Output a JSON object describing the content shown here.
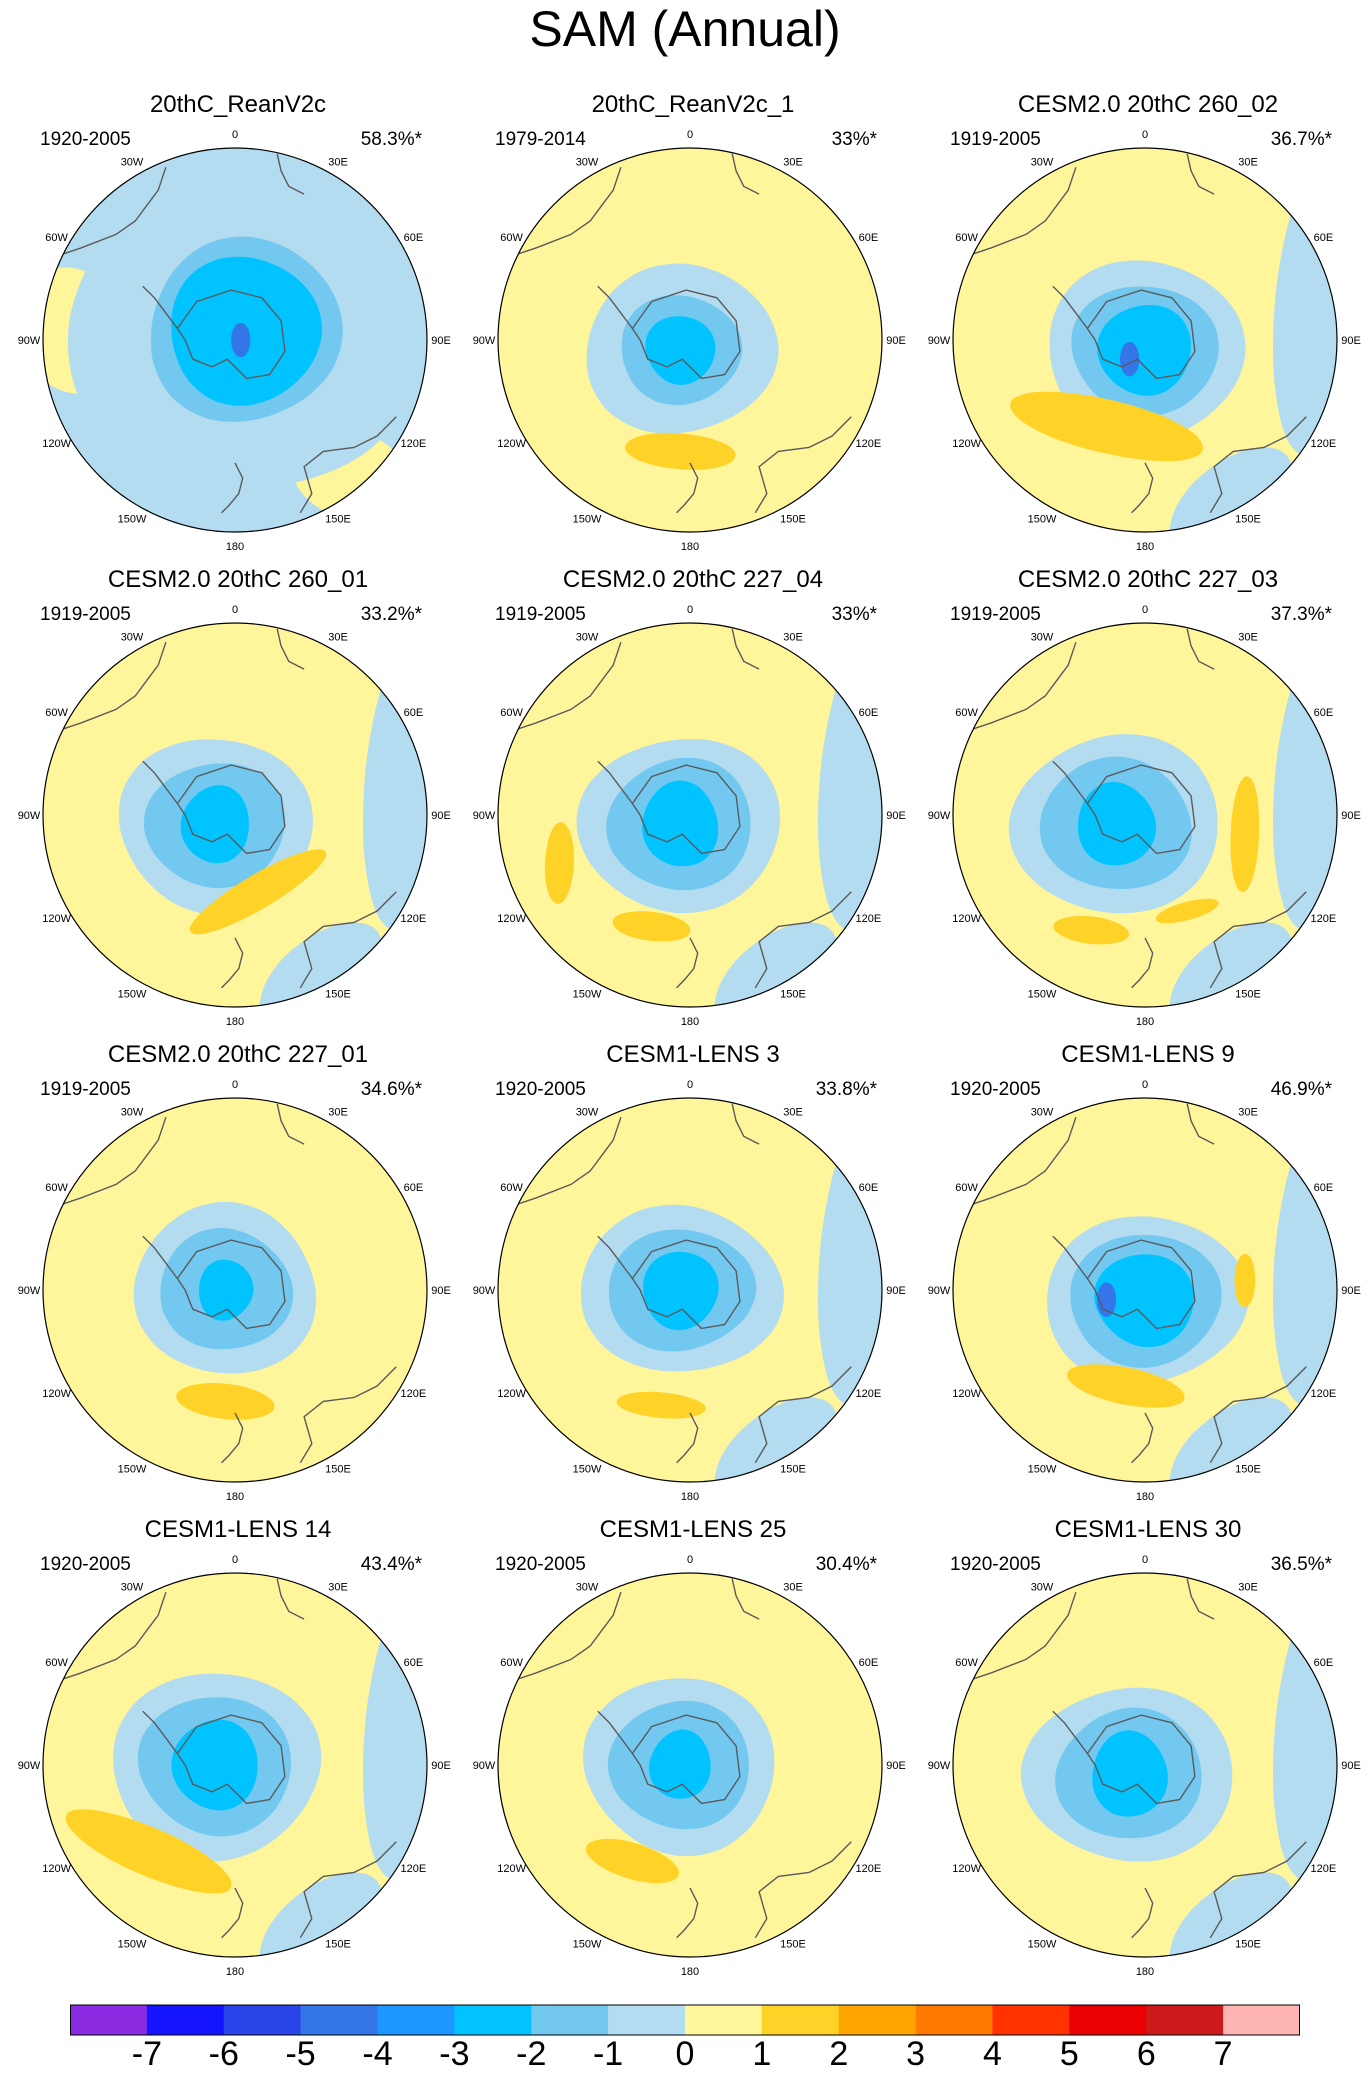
{
  "title": "SAM (Annual)",
  "panels": [
    {
      "title": "20thC_ReanV2c",
      "period": "1920-2005",
      "percent": "58.3%*"
    },
    {
      "title": "20thC_ReanV2c_1",
      "period": "1979-2014",
      "percent": "33%*"
    },
    {
      "title": "CESM2.0 20thC 260_02",
      "period": "1919-2005",
      "percent": "36.7%*"
    },
    {
      "title": "CESM2.0 20thC 260_01",
      "period": "1919-2005",
      "percent": "33.2%*"
    },
    {
      "title": "CESM2.0 20thC 227_04",
      "period": "1919-2005",
      "percent": "33%*"
    },
    {
      "title": "CESM2.0 20thC 227_03",
      "period": "1919-2005",
      "percent": "37.3%*"
    },
    {
      "title": "CESM2.0 20thC 227_01",
      "period": "1919-2005",
      "percent": "34.6%*"
    },
    {
      "title": "CESM1-LENS 3",
      "period": "1920-2005",
      "percent": "33.8%*"
    },
    {
      "title": "CESM1-LENS 9",
      "period": "1920-2005",
      "percent": "46.9%*"
    },
    {
      "title": "CESM1-LENS 14",
      "period": "1920-2005",
      "percent": "43.4%*"
    },
    {
      "title": "CESM1-LENS 25",
      "period": "1920-2005",
      "percent": "30.4%*"
    },
    {
      "title": "CESM1-LENS 30",
      "period": "1920-2005",
      "percent": "36.5%*"
    }
  ],
  "longitude_labels": [
    "0",
    "30E",
    "60E",
    "90E",
    "120E",
    "150E",
    "180",
    "150W",
    "120W",
    "90W",
    "60W",
    "30W"
  ],
  "colorbar": {
    "labels": [
      "-7",
      "-6",
      "-5",
      "-4",
      "-3",
      "-2",
      "-1",
      "0",
      "1",
      "2",
      "3",
      "4",
      "5",
      "6",
      "7"
    ],
    "colors": [
      "#8a2be2",
      "#1414ff",
      "#2a44e8",
      "#3475e8",
      "#1e96ff",
      "#00c3ff",
      "#73c8f0",
      "#b4dcf0",
      "#fff59b",
      "#ffd228",
      "#ffa500",
      "#ff7800",
      "#ff3200",
      "#ea0000",
      "#cc1a1a",
      "#ffb4b4"
    ]
  }
}
